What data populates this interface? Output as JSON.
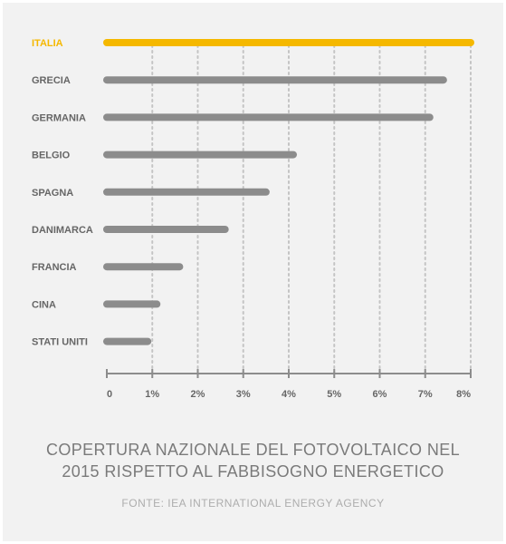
{
  "title_line1": "COPERTURA NAZIONALE DEL FOTOVOLTAICO NEL",
  "title_line2": "2015 RISPETTO AL FABBISOGNO ENERGETICO",
  "source": "FONTE: IEA INTERNATIONAL ENERGY AGENCY",
  "colors": {
    "highlight": "#f5b800",
    "bar": "#8c8c8c",
    "label": "#666666",
    "grid": "#c4c4c4",
    "axis": "#8c8c8c",
    "background": "#f2f2f2"
  },
  "chart_data": {
    "type": "bar",
    "orientation": "horizontal",
    "title": "COPERTURA NAZIONALE DEL FOTOVOLTAICO NEL 2015 RISPETTO AL FABBISOGNO ENERGETICO",
    "categories": [
      "ITALIA",
      "GRECIA",
      "GERMANIA",
      "BELGIO",
      "SPAGNA",
      "DANIMARCA",
      "FRANCIA",
      "CINA",
      "STATI UNITI"
    ],
    "values": [
      8.0,
      7.4,
      7.1,
      4.1,
      3.5,
      2.6,
      1.6,
      1.1,
      0.9
    ],
    "highlight": "ITALIA",
    "xlim": [
      0,
      8
    ],
    "ticks": [
      0,
      1,
      2,
      3,
      4,
      5,
      6,
      7,
      8
    ],
    "tick_labels": [
      "0",
      "1%",
      "2%",
      "3%",
      "4%",
      "5%",
      "6%",
      "7%",
      "8%"
    ],
    "grid": true,
    "grid_style": "dotted"
  }
}
